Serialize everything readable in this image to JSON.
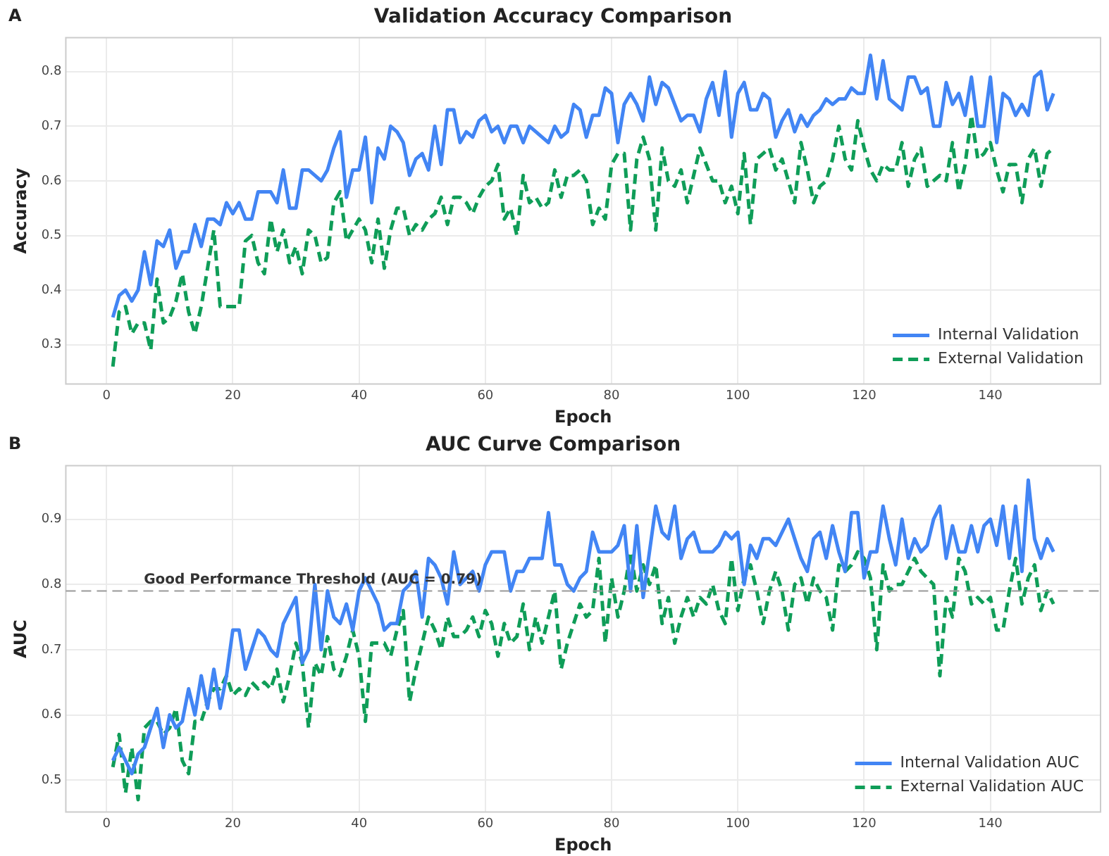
{
  "chart_data": [
    {
      "type": "line",
      "title": "Validation Accuracy Comparison",
      "xlabel": "Epoch",
      "ylabel": "Accuracy",
      "annotations": [
        "A"
      ],
      "x": [
        1,
        2,
        3,
        4,
        5,
        6,
        7,
        8,
        9,
        10,
        11,
        12,
        13,
        14,
        15,
        16,
        17,
        18,
        19,
        20,
        21,
        22,
        23,
        24,
        25,
        26,
        27,
        28,
        29,
        30,
        31,
        32,
        33,
        34,
        35,
        36,
        37,
        38,
        39,
        40,
        41,
        42,
        43,
        44,
        45,
        46,
        47,
        48,
        49,
        50,
        51,
        52,
        53,
        54,
        55,
        56,
        57,
        58,
        59,
        60,
        61,
        62,
        63,
        64,
        65,
        66,
        67,
        68,
        69,
        70,
        71,
        72,
        73,
        74,
        75,
        76,
        77,
        78,
        79,
        80,
        81,
        82,
        83,
        84,
        85,
        86,
        87,
        88,
        89,
        90,
        91,
        92,
        93,
        94,
        95,
        96,
        97,
        98,
        99,
        100,
        101,
        102,
        103,
        104,
        105,
        106,
        107,
        108,
        109,
        110,
        111,
        112,
        113,
        114,
        115,
        116,
        117,
        118,
        119,
        120,
        121,
        122,
        123,
        124,
        125,
        126,
        127,
        128,
        129,
        130,
        131,
        132,
        133,
        134,
        135,
        136,
        137,
        138,
        139,
        140,
        141,
        142,
        143,
        144,
        145,
        146,
        147,
        148,
        149,
        150
      ],
      "xlim": [
        -6.45,
        157.45
      ],
      "xticks": [
        0,
        20,
        40,
        60,
        80,
        100,
        120,
        140
      ],
      "ylim": [
        0.228,
        0.862
      ],
      "yticks": [
        0.3,
        0.4,
        0.5,
        0.6,
        0.7,
        0.8
      ],
      "grid": true,
      "legend": "bottom right",
      "marker": "none",
      "series": [
        {
          "name": "Internal Validation",
          "color": "#4285f4",
          "line_style": "solid",
          "values": [
            0.35,
            0.39,
            0.4,
            0.38,
            0.4,
            0.47,
            0.41,
            0.49,
            0.48,
            0.51,
            0.44,
            0.47,
            0.47,
            0.52,
            0.48,
            0.53,
            0.53,
            0.52,
            0.56,
            0.54,
            0.56,
            0.53,
            0.53,
            0.58,
            0.58,
            0.58,
            0.56,
            0.62,
            0.55,
            0.55,
            0.62,
            0.62,
            0.61,
            0.6,
            0.62,
            0.66,
            0.69,
            0.57,
            0.62,
            0.62,
            0.68,
            0.56,
            0.66,
            0.64,
            0.7,
            0.69,
            0.67,
            0.61,
            0.64,
            0.65,
            0.62,
            0.7,
            0.63,
            0.73,
            0.73,
            0.67,
            0.69,
            0.68,
            0.71,
            0.72,
            0.69,
            0.7,
            0.67,
            0.7,
            0.7,
            0.67,
            0.7,
            0.69,
            0.68,
            0.67,
            0.7,
            0.68,
            0.69,
            0.74,
            0.73,
            0.68,
            0.72,
            0.72,
            0.77,
            0.76,
            0.67,
            0.74,
            0.76,
            0.74,
            0.71,
            0.79,
            0.74,
            0.78,
            0.77,
            0.74,
            0.71,
            0.72,
            0.72,
            0.69,
            0.75,
            0.78,
            0.72,
            0.8,
            0.68,
            0.76,
            0.78,
            0.73,
            0.73,
            0.76,
            0.75,
            0.68,
            0.71,
            0.73,
            0.69,
            0.72,
            0.7,
            0.72,
            0.73,
            0.75,
            0.74,
            0.75,
            0.75,
            0.77,
            0.76,
            0.76,
            0.83,
            0.75,
            0.82,
            0.75,
            0.74,
            0.73,
            0.79,
            0.79,
            0.76,
            0.77,
            0.7,
            0.7,
            0.78,
            0.74,
            0.76,
            0.72,
            0.79,
            0.7,
            0.7,
            0.79,
            0.67,
            0.76,
            0.75,
            0.72,
            0.74,
            0.72,
            0.79,
            0.8,
            0.73,
            0.76
          ]
        },
        {
          "name": "External Validation",
          "color": "#0f9d58",
          "line_style": "dashed",
          "values": [
            0.26,
            0.36,
            0.37,
            0.32,
            0.34,
            0.34,
            0.29,
            0.42,
            0.34,
            0.35,
            0.38,
            0.43,
            0.36,
            0.32,
            0.37,
            0.44,
            0.51,
            0.37,
            0.37,
            0.37,
            0.37,
            0.49,
            0.5,
            0.45,
            0.43,
            0.53,
            0.47,
            0.51,
            0.45,
            0.48,
            0.43,
            0.51,
            0.5,
            0.45,
            0.46,
            0.56,
            0.58,
            0.49,
            0.51,
            0.53,
            0.51,
            0.45,
            0.53,
            0.44,
            0.51,
            0.55,
            0.55,
            0.5,
            0.52,
            0.51,
            0.53,
            0.54,
            0.57,
            0.52,
            0.57,
            0.57,
            0.56,
            0.54,
            0.57,
            0.59,
            0.6,
            0.63,
            0.53,
            0.55,
            0.5,
            0.61,
            0.56,
            0.57,
            0.55,
            0.56,
            0.62,
            0.57,
            0.61,
            0.61,
            0.62,
            0.6,
            0.52,
            0.55,
            0.53,
            0.63,
            0.65,
            0.65,
            0.51,
            0.64,
            0.68,
            0.64,
            0.51,
            0.66,
            0.6,
            0.59,
            0.62,
            0.56,
            0.61,
            0.66,
            0.63,
            0.6,
            0.6,
            0.56,
            0.59,
            0.54,
            0.65,
            0.52,
            0.64,
            0.65,
            0.66,
            0.62,
            0.64,
            0.6,
            0.56,
            0.67,
            0.62,
            0.56,
            0.59,
            0.6,
            0.64,
            0.7,
            0.64,
            0.62,
            0.71,
            0.66,
            0.62,
            0.6,
            0.63,
            0.62,
            0.62,
            0.67,
            0.59,
            0.64,
            0.66,
            0.59,
            0.6,
            0.61,
            0.6,
            0.67,
            0.58,
            0.63,
            0.72,
            0.64,
            0.65,
            0.67,
            0.62,
            0.58,
            0.63,
            0.63,
            0.56,
            0.64,
            0.66,
            0.59,
            0.65,
            0.66
          ]
        }
      ]
    },
    {
      "type": "line",
      "title": "AUC Curve Comparison",
      "xlabel": "Epoch",
      "ylabel": "AUC",
      "annotations": [
        "B"
      ],
      "x": [
        1,
        2,
        3,
        4,
        5,
        6,
        7,
        8,
        9,
        10,
        11,
        12,
        13,
        14,
        15,
        16,
        17,
        18,
        19,
        20,
        21,
        22,
        23,
        24,
        25,
        26,
        27,
        28,
        29,
        30,
        31,
        32,
        33,
        34,
        35,
        36,
        37,
        38,
        39,
        40,
        41,
        42,
        43,
        44,
        45,
        46,
        47,
        48,
        49,
        50,
        51,
        52,
        53,
        54,
        55,
        56,
        57,
        58,
        59,
        60,
        61,
        62,
        63,
        64,
        65,
        66,
        67,
        68,
        69,
        70,
        71,
        72,
        73,
        74,
        75,
        76,
        77,
        78,
        79,
        80,
        81,
        82,
        83,
        84,
        85,
        86,
        87,
        88,
        89,
        90,
        91,
        92,
        93,
        94,
        95,
        96,
        97,
        98,
        99,
        100,
        101,
        102,
        103,
        104,
        105,
        106,
        107,
        108,
        109,
        110,
        111,
        112,
        113,
        114,
        115,
        116,
        117,
        118,
        119,
        120,
        121,
        122,
        123,
        124,
        125,
        126,
        127,
        128,
        129,
        130,
        131,
        132,
        133,
        134,
        135,
        136,
        137,
        138,
        139,
        140,
        141,
        142,
        143,
        144,
        145,
        146,
        147,
        148,
        149,
        150
      ],
      "xlim": [
        -6.45,
        157.45
      ],
      "xticks": [
        0,
        20,
        40,
        60,
        80,
        100,
        120,
        140
      ],
      "ylim": [
        0.451,
        0.982
      ],
      "yticks": [
        0.5,
        0.6,
        0.7,
        0.8,
        0.9
      ],
      "grid": true,
      "legend": "bottom right",
      "marker": "none",
      "ref_lines": [
        {
          "axis": "y",
          "value": 0.79,
          "label": "Good Performance Threshold (AUC = 0.79)",
          "color": "#999999",
          "line_style": "dashed"
        }
      ],
      "series": [
        {
          "name": "Internal Validation AUC",
          "color": "#4285f4",
          "line_style": "solid",
          "values": [
            0.53,
            0.55,
            0.53,
            0.51,
            0.54,
            0.55,
            0.58,
            0.61,
            0.55,
            0.6,
            0.58,
            0.59,
            0.64,
            0.6,
            0.66,
            0.61,
            0.67,
            0.61,
            0.66,
            0.73,
            0.73,
            0.67,
            0.7,
            0.73,
            0.72,
            0.7,
            0.69,
            0.74,
            0.76,
            0.78,
            0.68,
            0.7,
            0.8,
            0.7,
            0.79,
            0.75,
            0.74,
            0.77,
            0.73,
            0.79,
            0.81,
            0.79,
            0.77,
            0.73,
            0.74,
            0.74,
            0.79,
            0.8,
            0.82,
            0.75,
            0.84,
            0.83,
            0.81,
            0.77,
            0.85,
            0.8,
            0.81,
            0.82,
            0.79,
            0.83,
            0.85,
            0.85,
            0.85,
            0.79,
            0.82,
            0.82,
            0.84,
            0.84,
            0.84,
            0.91,
            0.83,
            0.83,
            0.8,
            0.79,
            0.81,
            0.82,
            0.88,
            0.85,
            0.85,
            0.85,
            0.86,
            0.89,
            0.79,
            0.89,
            0.78,
            0.85,
            0.92,
            0.88,
            0.87,
            0.92,
            0.84,
            0.87,
            0.88,
            0.85,
            0.85,
            0.85,
            0.86,
            0.88,
            0.87,
            0.88,
            0.8,
            0.86,
            0.84,
            0.87,
            0.87,
            0.86,
            0.88,
            0.9,
            0.87,
            0.84,
            0.82,
            0.87,
            0.88,
            0.84,
            0.89,
            0.85,
            0.82,
            0.91,
            0.91,
            0.81,
            0.85,
            0.85,
            0.92,
            0.87,
            0.83,
            0.9,
            0.84,
            0.87,
            0.85,
            0.86,
            0.9,
            0.92,
            0.84,
            0.89,
            0.85,
            0.85,
            0.89,
            0.85,
            0.89,
            0.9,
            0.86,
            0.92,
            0.84,
            0.92,
            0.82,
            0.96,
            0.87,
            0.84,
            0.87,
            0.85
          ]
        },
        {
          "name": "External Validation AUC",
          "color": "#0f9d58",
          "line_style": "dashed",
          "values": [
            0.52,
            0.57,
            0.48,
            0.55,
            0.47,
            0.58,
            0.59,
            0.59,
            0.57,
            0.58,
            0.61,
            0.53,
            0.51,
            0.59,
            0.59,
            0.62,
            0.64,
            0.64,
            0.66,
            0.63,
            0.64,
            0.63,
            0.65,
            0.64,
            0.65,
            0.64,
            0.67,
            0.62,
            0.66,
            0.71,
            0.68,
            0.58,
            0.68,
            0.66,
            0.72,
            0.67,
            0.66,
            0.69,
            0.73,
            0.69,
            0.59,
            0.71,
            0.71,
            0.71,
            0.69,
            0.73,
            0.76,
            0.62,
            0.67,
            0.71,
            0.75,
            0.73,
            0.7,
            0.75,
            0.72,
            0.72,
            0.73,
            0.75,
            0.72,
            0.76,
            0.74,
            0.69,
            0.74,
            0.71,
            0.72,
            0.77,
            0.7,
            0.75,
            0.71,
            0.75,
            0.79,
            0.67,
            0.71,
            0.74,
            0.77,
            0.75,
            0.76,
            0.84,
            0.71,
            0.81,
            0.75,
            0.79,
            0.85,
            0.79,
            0.83,
            0.8,
            0.83,
            0.74,
            0.78,
            0.71,
            0.75,
            0.78,
            0.75,
            0.78,
            0.77,
            0.8,
            0.76,
            0.74,
            0.84,
            0.76,
            0.81,
            0.83,
            0.79,
            0.74,
            0.79,
            0.82,
            0.79,
            0.73,
            0.8,
            0.81,
            0.77,
            0.81,
            0.79,
            0.78,
            0.73,
            0.83,
            0.82,
            0.83,
            0.85,
            0.84,
            0.81,
            0.7,
            0.83,
            0.79,
            0.8,
            0.8,
            0.82,
            0.84,
            0.82,
            0.81,
            0.8,
            0.66,
            0.78,
            0.75,
            0.84,
            0.82,
            0.77,
            0.78,
            0.77,
            0.78,
            0.73,
            0.73,
            0.79,
            0.84,
            0.77,
            0.81,
            0.83,
            0.76,
            0.79,
            0.77
          ]
        }
      ]
    }
  ]
}
